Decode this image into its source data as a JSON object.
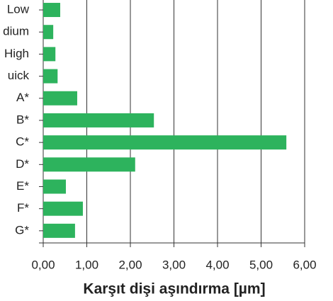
{
  "chart_data": {
    "type": "barh",
    "xlabel": "Karşıt dişi aşındırma [µm]",
    "categories": [
      "Low",
      "dium",
      "High",
      "uick",
      "A*",
      "B*",
      "C*",
      "D*",
      "E*",
      "F*",
      "G*"
    ],
    "values": [
      0.39,
      0.23,
      0.28,
      0.33,
      0.78,
      2.54,
      5.58,
      2.11,
      0.52,
      0.91,
      0.73
    ],
    "color": "#2db35d",
    "xlim": [
      0,
      6
    ],
    "xticks": [
      {
        "value": 0,
        "label": "0,00"
      },
      {
        "value": 1,
        "label": "1,00"
      },
      {
        "value": 2,
        "label": "2,00"
      },
      {
        "value": 3,
        "label": "3,00"
      },
      {
        "value": 4,
        "label": "4,00"
      },
      {
        "value": 5,
        "label": "5,00"
      },
      {
        "value": 6,
        "label": "6,00"
      }
    ],
    "grid": true
  }
}
